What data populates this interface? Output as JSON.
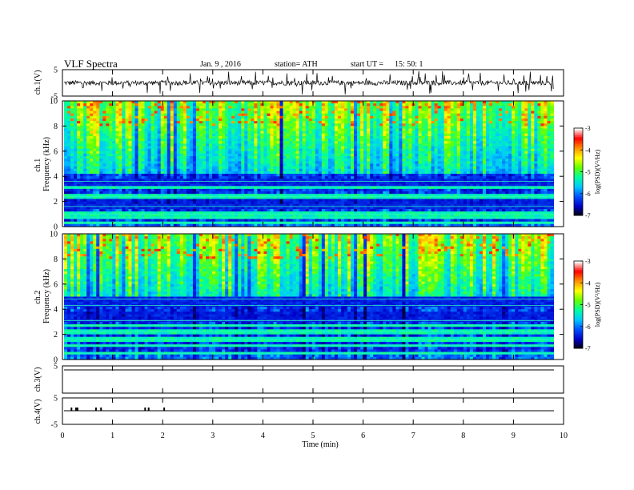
{
  "header": {
    "title": "VLF  Spectra",
    "date": "Jan. 9  , 2016",
    "station": "station= ATH",
    "start_label": "start  UT  =",
    "start_time": "15: 50: 1"
  },
  "chart_data": [
    {
      "type": "line",
      "panel": "ch1-waveform",
      "ylabel": "ch.1(V)",
      "ylim": [
        -5,
        5
      ],
      "yticks": [
        "5",
        "-5"
      ],
      "baseline": 0,
      "x_extent_min": 9.8,
      "color": "#000000"
    },
    {
      "type": "heatmap",
      "panel": "ch1-spectrogram",
      "ylabel": "ch.1\nFrequency  (kHz)",
      "ylim": [
        0,
        10
      ],
      "yticks": [
        "0",
        "2",
        "4",
        "6",
        "8",
        "10"
      ],
      "x_extent_min": 9.8,
      "colorbar": {
        "label": "log(PSD)(V²/Hz)",
        "range": [
          -7,
          -3
        ],
        "ticks": [
          "-3",
          "-4",
          "-5",
          "-6",
          "-7"
        ],
        "colors": [
          "#000000",
          "#0000c8",
          "#0050ff",
          "#00c8ff",
          "#00ffa0",
          "#64ff00",
          "#ffff00",
          "#ff9000",
          "#ff0000",
          "#ffffff"
        ]
      }
    },
    {
      "type": "heatmap",
      "panel": "ch2-spectrogram",
      "ylabel": "ch.2\nFrequency  (kHz)",
      "ylim": [
        0,
        10
      ],
      "yticks": [
        "0",
        "2",
        "4",
        "6",
        "8",
        "10"
      ],
      "x_extent_min": 9.8,
      "colorbar": {
        "label": "log(PSD)(V²/Hz)",
        "range": [
          -7,
          -3
        ],
        "ticks": [
          "-3",
          "-4",
          "-5",
          "-6",
          "-7"
        ],
        "colors": [
          "#000000",
          "#0000c8",
          "#0050ff",
          "#00c8ff",
          "#00ffa0",
          "#64ff00",
          "#ffff00",
          "#ff9000",
          "#ff0000",
          "#ffffff"
        ]
      }
    },
    {
      "type": "line",
      "panel": "ch3-waveform",
      "ylabel": "ch.3(V)",
      "ylim": [
        -5,
        5
      ],
      "yticks": [
        "5"
      ],
      "baseline": 0,
      "x_extent_min": 9.8,
      "color": "#000000"
    },
    {
      "type": "line",
      "panel": "ch4-waveform",
      "ylabel": "ch.4(V)",
      "ylim": [
        -5,
        5
      ],
      "yticks": [
        "5",
        "-5"
      ],
      "baseline": 0,
      "x_extent_min": 9.8,
      "color": "#000000",
      "marks_min": [
        0.18,
        0.27,
        0.3,
        0.67,
        0.77,
        1.65,
        1.72,
        2.03
      ]
    }
  ],
  "x_axis": {
    "label": "Time  (min)",
    "ticks": [
      "0",
      "1",
      "2",
      "3",
      "4",
      "5",
      "6",
      "7",
      "8",
      "9",
      "10"
    ],
    "range": [
      0,
      10
    ]
  }
}
